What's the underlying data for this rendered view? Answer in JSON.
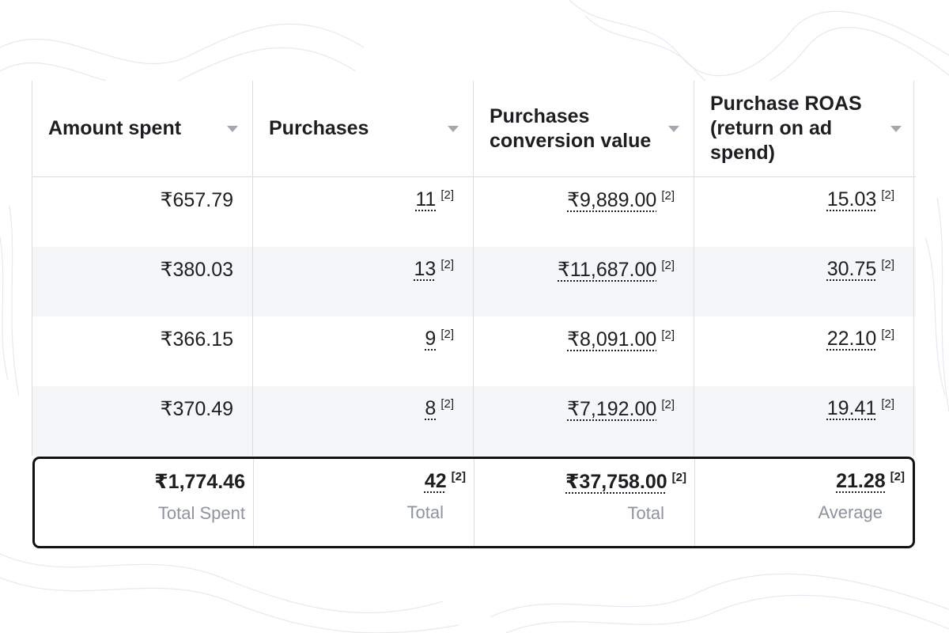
{
  "columns": [
    {
      "label": "Amount spent"
    },
    {
      "label": "Purchases"
    },
    {
      "label": "Purchases conversion value"
    },
    {
      "label": "Purchase ROAS (return on ad spend)"
    }
  ],
  "rows": [
    {
      "amount": "₹657.79",
      "purchases": "11",
      "conversion_value": "₹9,889.00",
      "roas": "15.03"
    },
    {
      "amount": "₹380.03",
      "purchases": "13",
      "conversion_value": "₹11,687.00",
      "roas": "30.75"
    },
    {
      "amount": "₹366.15",
      "purchases": "9",
      "conversion_value": "₹8,091.00",
      "roas": "22.10"
    },
    {
      "amount": "₹370.49",
      "purchases": "8",
      "conversion_value": "₹7,192.00",
      "roas": "19.41"
    }
  ],
  "footnote": "[2]",
  "totals": {
    "amount": {
      "value": "₹1,774.46",
      "label": "Total Spent"
    },
    "purchases": {
      "value": "42",
      "label": "Total"
    },
    "conversion_value": {
      "value": "₹37,758.00",
      "label": "Total"
    },
    "roas": {
      "value": "21.28",
      "label": "Average"
    }
  },
  "colors": {
    "accent_border": "#111111",
    "alt_row": "#f5f6f7",
    "muted_text": "#8d949e"
  }
}
